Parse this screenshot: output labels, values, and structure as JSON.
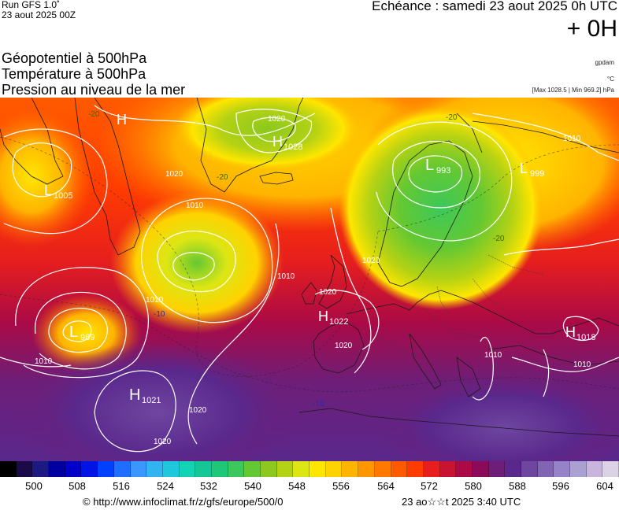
{
  "header": {
    "run": "Run GFS 1.0˚",
    "run_date": "23 aout 2025 00Z",
    "forecast_label": "Echéance : samedi 23 aout 2025 0h UTC",
    "offset": "+ 0H"
  },
  "layers": [
    "Géopotentiel à 500hPa",
    "Température à 500hPa",
    "Pression au niveau de la mer"
  ],
  "units": {
    "geopotential": "gpdam",
    "temperature": "°C",
    "pressure_range": "[Max 1028.5 | Min 969.2] hPa"
  },
  "pressure_centers": [
    {
      "type": "H",
      "value": "1021",
      "name": "high-azores"
    },
    {
      "type": "H",
      "value": "1022",
      "name": "high-biscay"
    },
    {
      "type": "H",
      "value": "1018",
      "name": "high-black-sea"
    },
    {
      "type": "H",
      "value": "1028",
      "name": "high-greenland"
    },
    {
      "type": "H",
      "value": "",
      "name": "high-baffin"
    },
    {
      "type": "L",
      "value": "993",
      "name": "low-scandinavia"
    },
    {
      "type": "L",
      "value": "999",
      "name": "low-russia"
    },
    {
      "type": "L",
      "value": "969",
      "name": "low-atlantic"
    },
    {
      "type": "L",
      "value": "1005",
      "name": "low-labrador"
    }
  ],
  "isobar_labels": [
    "1010",
    "1020",
    "1010",
    "1020",
    "1010",
    "1020",
    "1010",
    "1020",
    "1010",
    "1020"
  ],
  "isotherm_labels": [
    "-20",
    "-20",
    "-20",
    "-10",
    "-10",
    "-20"
  ],
  "legend": {
    "colors": [
      "#000000",
      "#1a0a4a",
      "#1a1a80",
      "#0000a0",
      "#0000c8",
      "#0014e6",
      "#0040ff",
      "#1e6eff",
      "#3c96ff",
      "#32b4f0",
      "#1ec8dc",
      "#14d2b4",
      "#14c896",
      "#1ec878",
      "#3cc85a",
      "#64c832",
      "#8cc81e",
      "#b4d214",
      "#dce614",
      "#ffe600",
      "#ffd200",
      "#ffb400",
      "#ff9600",
      "#ff7800",
      "#ff5a00",
      "#ff3c00",
      "#e61e1e",
      "#c81432",
      "#aa0a46",
      "#8c0a5a",
      "#6e1e78",
      "#5a288c",
      "#6e46a0",
      "#8264b4",
      "#9682c8",
      "#aaa0d2",
      "#c8b4dc",
      "#dcd2e6"
    ],
    "labels": [
      "500",
      "508",
      "516",
      "524",
      "532",
      "540",
      "548",
      "556",
      "564",
      "572",
      "580",
      "588",
      "596",
      "604"
    ]
  },
  "footer": {
    "credit": "© http://www.infoclimat.fr/z/gfs/europe/500/0",
    "timestamp": "23 ao☆☆t 2025  3:40 UTC"
  }
}
